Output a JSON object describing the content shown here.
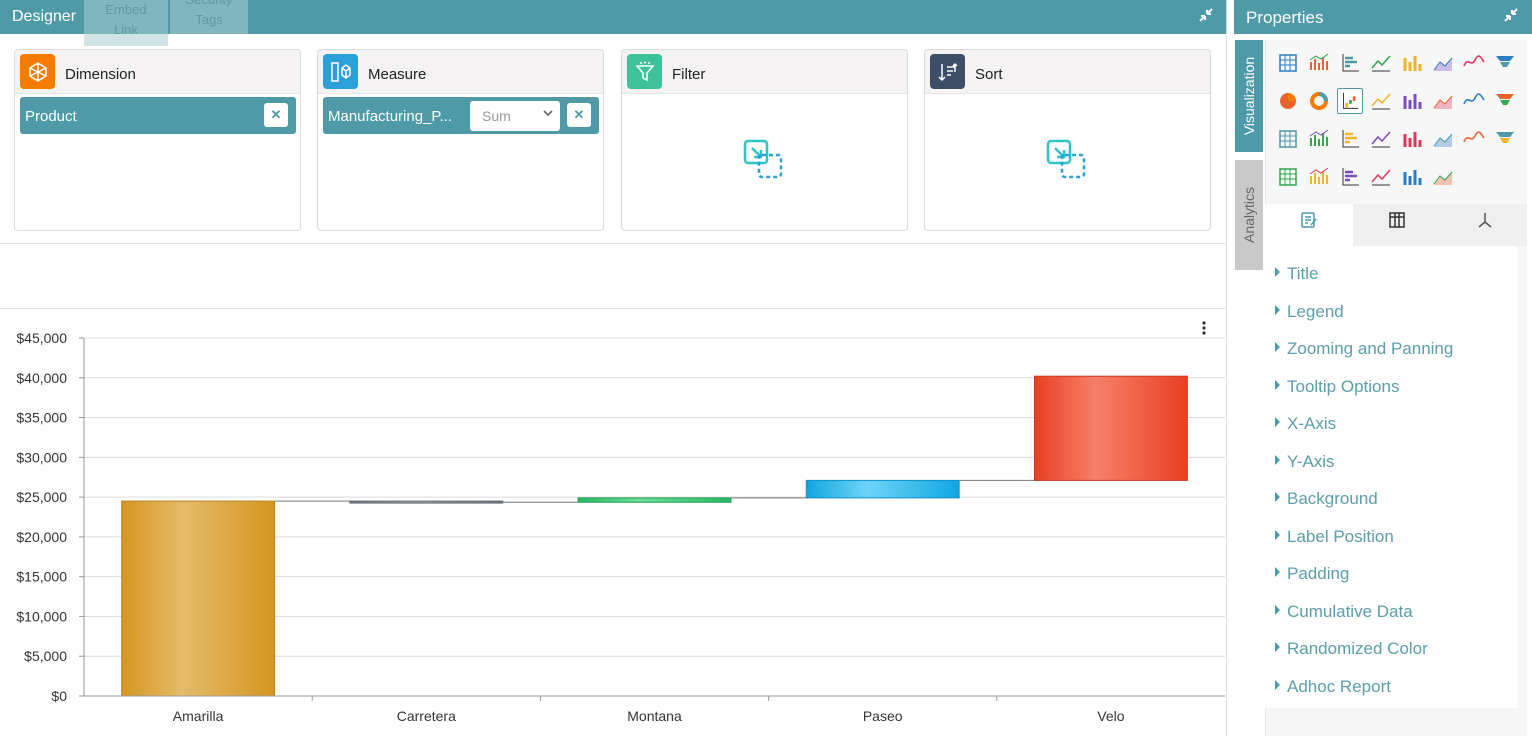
{
  "designer": {
    "title": "Designer",
    "ghost_tabs": [
      {
        "line1": "Embed",
        "line2": "Link"
      },
      {
        "line1": "Security",
        "line2": "Tags"
      }
    ]
  },
  "wells": {
    "dimension": {
      "title": "Dimension",
      "icon": "dimension-icon",
      "chip": "Product"
    },
    "measure": {
      "title": "Measure",
      "icon": "measure-icon",
      "chip": "Manufacturing_P...",
      "aggregation": "Sum"
    },
    "filter": {
      "title": "Filter",
      "icon": "filter-icon"
    },
    "sort": {
      "title": "Sort",
      "icon": "sort-icon"
    }
  },
  "properties": {
    "title": "Properties",
    "side_tabs": [
      "Visualization",
      "Analytics"
    ],
    "items": [
      "Title",
      "Legend",
      "Zooming and Panning",
      "Tooltip Options",
      "X-Axis",
      "Y-Axis",
      "Background",
      "Label Position",
      "Padding",
      "Cumulative Data",
      "Randomized Color",
      "Adhoc Report"
    ]
  },
  "colors": {
    "accent": "#4e9aa6",
    "amarilla": "#d99e2b",
    "carretera": "#7f8a96",
    "montana": "#35c46e",
    "paseo": "#1eb3ea",
    "velo": "#ef4a2d"
  },
  "chart_data": {
    "type": "bar",
    "subtype": "waterfall",
    "categories": [
      "Amarilla",
      "Carretera",
      "Montana",
      "Paseo",
      "Velo"
    ],
    "values": [
      24500,
      -150,
      550,
      2200,
      13100
    ],
    "cumulative_ends": [
      24500,
      24350,
      24900,
      27100,
      40200
    ],
    "ylim": [
      0,
      45000
    ],
    "yticks": [
      "$0",
      "$5,000",
      "$10,000",
      "$15,000",
      "$20,000",
      "$25,000",
      "$30,000",
      "$35,000",
      "$40,000",
      "$45,000"
    ],
    "grid": true
  }
}
